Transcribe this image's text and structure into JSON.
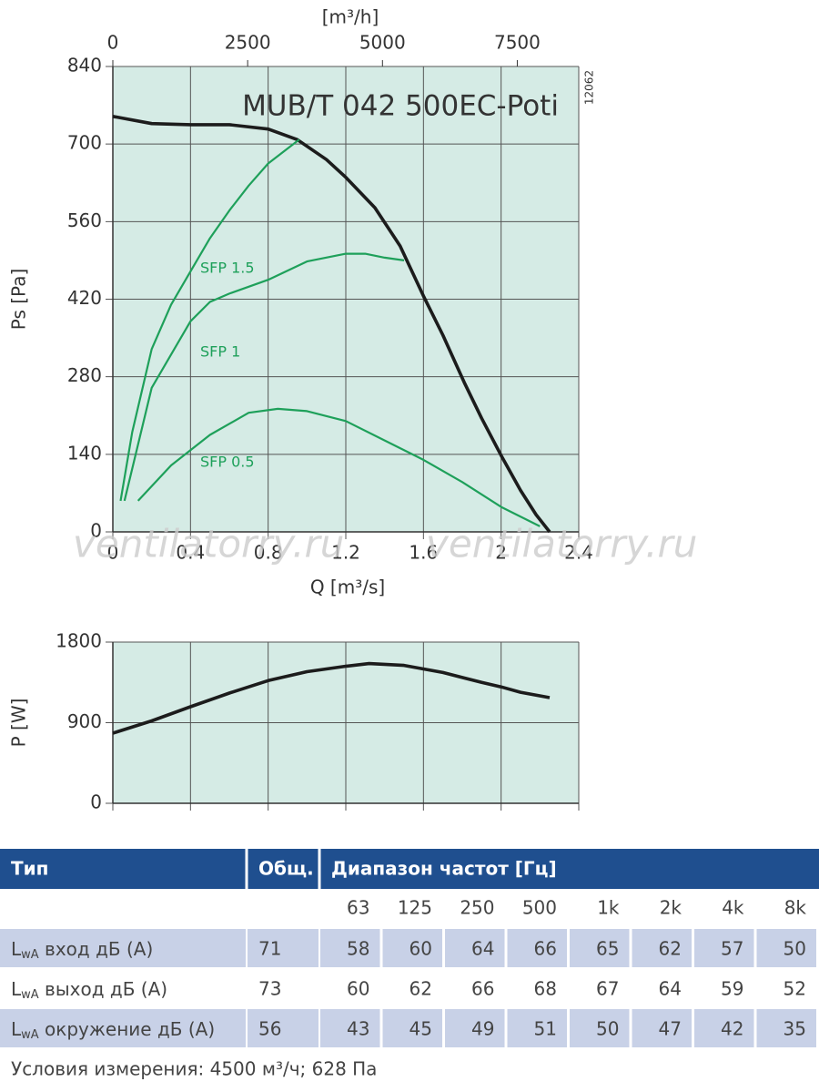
{
  "chart_data": [
    {
      "type": "line",
      "title": "MUB/T 042 500EC-Poti",
      "code": "12062",
      "x_label": "Q [m³/s]",
      "y_label": "Ps [Pa]",
      "x2_label": "[m³/h]",
      "xlim": [
        0,
        2.4
      ],
      "xticks": [
        0,
        0.4,
        0.8,
        1.2,
        1.6,
        2,
        2.4
      ],
      "x2lim": [
        0,
        8640
      ],
      "x2ticks": [
        0,
        2500,
        5000,
        7500
      ],
      "ylim": [
        0,
        840
      ],
      "yticks": [
        0,
        140,
        280,
        420,
        560,
        700,
        840
      ],
      "grid": true,
      "series": [
        {
          "color": "#1c1c1c",
          "x": [
            0,
            0.2,
            0.4,
            0.6,
            0.8,
            0.95,
            1.1,
            1.2,
            1.35,
            1.48,
            1.6,
            1.7,
            1.81,
            1.9,
            2.0,
            2.1,
            2.18,
            2.25
          ],
          "values": [
            750,
            737,
            735,
            735,
            727,
            708,
            672,
            640,
            585,
            516,
            426,
            355,
            270,
            205,
            138,
            75,
            31,
            0
          ]
        },
        {
          "name": "SFP 1.5",
          "color": "#1ea05a",
          "x": [
            0.04,
            0.1,
            0.2,
            0.3,
            0.4,
            0.5,
            0.6,
            0.7,
            0.8,
            0.96
          ],
          "values": [
            56,
            180,
            330,
            410,
            470,
            530,
            580,
            625,
            665,
            708
          ]
        },
        {
          "name": "SFP 1",
          "color": "#1ea05a",
          "x": [
            0.06,
            0.2,
            0.4,
            0.5,
            0.6,
            0.8,
            1.0,
            1.2,
            1.3,
            1.4,
            1.5
          ],
          "values": [
            56,
            260,
            380,
            415,
            430,
            455,
            488,
            502,
            502,
            495,
            490
          ]
        },
        {
          "name": "SFP 0.5",
          "color": "#1ea05a",
          "x": [
            0.13,
            0.3,
            0.5,
            0.7,
            0.85,
            1.0,
            1.2,
            1.4,
            1.6,
            1.8,
            2.0,
            2.2
          ],
          "values": [
            56,
            120,
            175,
            215,
            222,
            218,
            200,
            165,
            130,
            90,
            45,
            10
          ]
        }
      ]
    },
    {
      "type": "line",
      "y_label": "P [W]",
      "ylim": [
        0,
        1800
      ],
      "yticks": [
        0,
        900,
        1800
      ],
      "grid": true,
      "series": [
        {
          "color": "#1c1c1c",
          "x": [
            0,
            0.2,
            0.4,
            0.6,
            0.8,
            1.0,
            1.2,
            1.32,
            1.5,
            1.7,
            1.9,
            2.0,
            2.1,
            2.25
          ],
          "values": [
            783,
            920,
            1078,
            1230,
            1370,
            1470,
            1530,
            1560,
            1540,
            1460,
            1350,
            1300,
            1240,
            1180
          ]
        }
      ]
    }
  ],
  "table": {
    "header": [
      "Тип",
      "Общ.",
      "Диапазон частот [Гц]"
    ],
    "bands": [
      "63",
      "125",
      "250",
      "500",
      "1k",
      "2k",
      "4k",
      "8k"
    ],
    "rows": [
      {
        "label": [
          "L",
          "wA",
          " вход дБ (А)"
        ],
        "total": 71,
        "values": [
          58,
          60,
          64,
          66,
          65,
          62,
          57,
          50
        ]
      },
      {
        "label": [
          "L",
          "wA",
          " выход дБ (А)"
        ],
        "total": 73,
        "values": [
          60,
          62,
          66,
          68,
          67,
          64,
          59,
          52
        ]
      },
      {
        "label": [
          "L",
          "wA",
          " окружение дБ (А)"
        ],
        "total": 56,
        "values": [
          43,
          45,
          49,
          51,
          50,
          47,
          42,
          35
        ]
      }
    ]
  },
  "footnote": "Условия измерения: 4500 м³/ч; 628 Па",
  "watermark": [
    "ventilatorry.ru",
    "ventilatorry.ru"
  ]
}
